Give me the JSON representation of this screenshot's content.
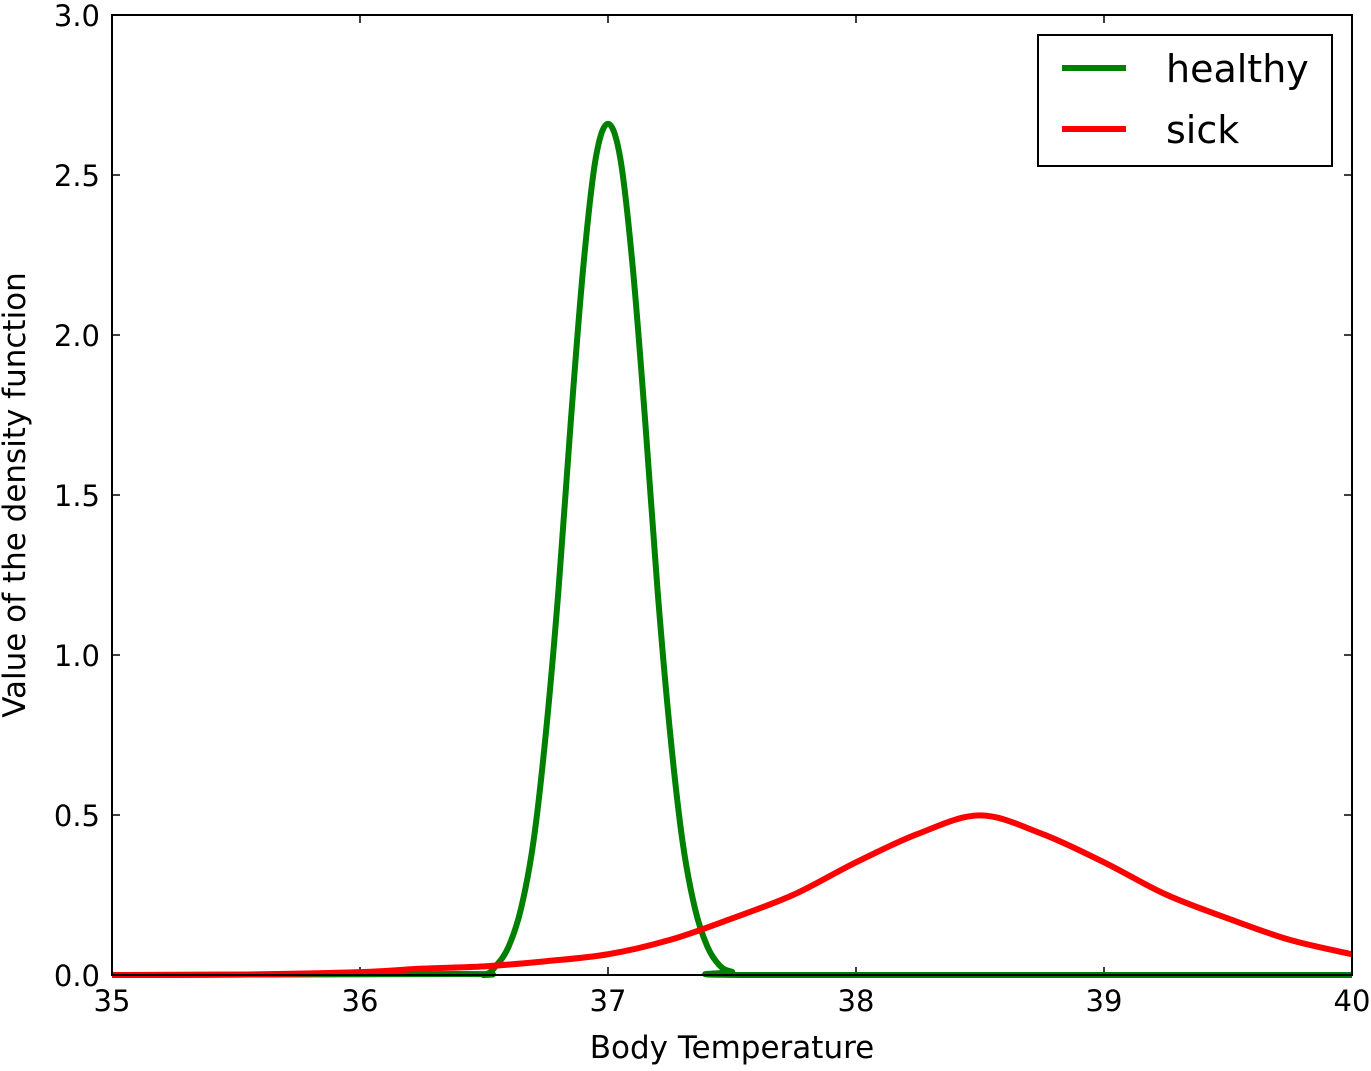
{
  "chart_data": {
    "type": "line",
    "title": "",
    "xlabel": "Body Temperature",
    "ylabel": "Value of the density function",
    "xlim": [
      35,
      40
    ],
    "ylim": [
      0,
      3.0
    ],
    "x_ticks": [
      "35",
      "36",
      "37",
      "38",
      "39",
      "40"
    ],
    "y_ticks": [
      "0.0",
      "0.5",
      "1.0",
      "1.5",
      "2.0",
      "2.5",
      "3.0"
    ],
    "grid": false,
    "legend_position": "top-right",
    "series": [
      {
        "name": "healthy",
        "color": "#008000",
        "x": [
          35.0,
          36.4,
          36.5,
          36.55,
          36.6,
          36.65,
          36.7,
          36.75,
          36.8,
          36.85,
          36.9,
          36.95,
          37.0,
          37.05,
          37.1,
          37.15,
          37.2,
          37.25,
          37.3,
          37.35,
          37.4,
          37.45,
          37.5,
          37.6,
          40.0
        ],
        "y": [
          0.0,
          0.003,
          0.0,
          0.03,
          0.09,
          0.21,
          0.42,
          0.76,
          1.2,
          1.73,
          2.21,
          2.55,
          2.66,
          2.55,
          2.21,
          1.73,
          1.2,
          0.76,
          0.42,
          0.21,
          0.09,
          0.03,
          0.01,
          0.0,
          0.0
        ]
      },
      {
        "name": "sick",
        "color": "#ff0000",
        "x": [
          35.0,
          35.5,
          36.0,
          36.25,
          36.5,
          36.75,
          37.0,
          37.25,
          37.5,
          37.75,
          38.0,
          38.25,
          38.5,
          38.75,
          39.0,
          39.25,
          39.5,
          39.75,
          40.0
        ],
        "y": [
          0.0001,
          0.0011,
          0.0088,
          0.0199,
          0.027,
          0.0431,
          0.0648,
          0.1096,
          0.1767,
          0.2515,
          0.3521,
          0.4412,
          0.4987,
          0.4412,
          0.3521,
          0.2515,
          0.1767,
          0.1096,
          0.0648
        ]
      }
    ]
  }
}
